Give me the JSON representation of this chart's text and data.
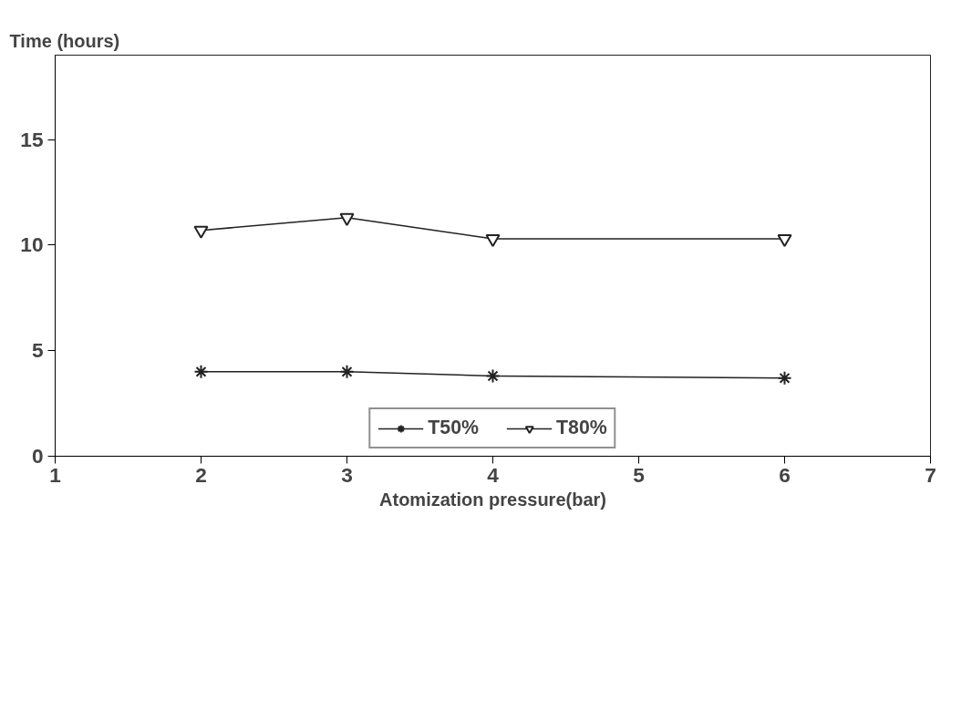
{
  "chart_data": {
    "type": "line",
    "ylabel": "Time (hours)",
    "xlabel": "Atomization pressure(bar)",
    "x": [
      2,
      3,
      4,
      6
    ],
    "xlim": [
      1,
      7
    ],
    "xticks": [
      1,
      2,
      3,
      4,
      5,
      6,
      7
    ],
    "ylim": [
      0,
      19
    ],
    "yticks": [
      0,
      5,
      10,
      15
    ],
    "series": [
      {
        "name": "T50%",
        "color": "#222222",
        "marker": "cross",
        "values": [
          4.0,
          4.0,
          3.8,
          3.7
        ]
      },
      {
        "name": "T80%",
        "color": "#222222",
        "marker": "triangle",
        "values": [
          10.7,
          11.3,
          10.3,
          10.3
        ]
      }
    ],
    "legend": "bottom",
    "grid": false,
    "line_style": "solid"
  }
}
